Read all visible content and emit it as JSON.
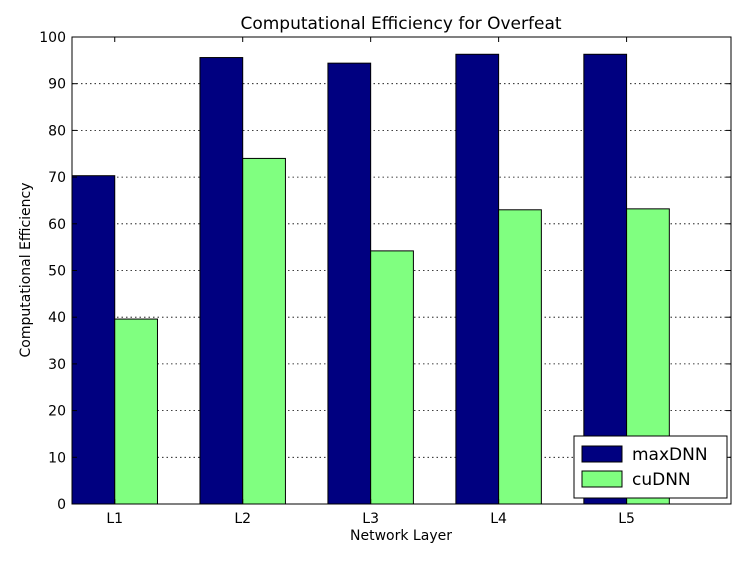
{
  "chart_data": {
    "type": "bar",
    "title": "Computational Efficiency for Overfeat",
    "xlabel": "Network Layer",
    "ylabel": "Computational Efficiency",
    "categories": [
      "L1",
      "L2",
      "L3",
      "L4",
      "L5"
    ],
    "series": [
      {
        "name": "maxDNN",
        "color": "#000080",
        "values": [
          70.3,
          95.6,
          94.4,
          96.3,
          96.3
        ]
      },
      {
        "name": "cuDNN",
        "color": "#80ff80",
        "values": [
          39.6,
          74.0,
          54.2,
          63.0,
          63.2
        ]
      }
    ],
    "ylim": [
      0,
      100
    ],
    "yticks": [
      "0",
      "10",
      "20",
      "30",
      "40",
      "50",
      "60",
      "70",
      "80",
      "90",
      "100"
    ],
    "grid": true,
    "legend_position": "lower-right"
  }
}
